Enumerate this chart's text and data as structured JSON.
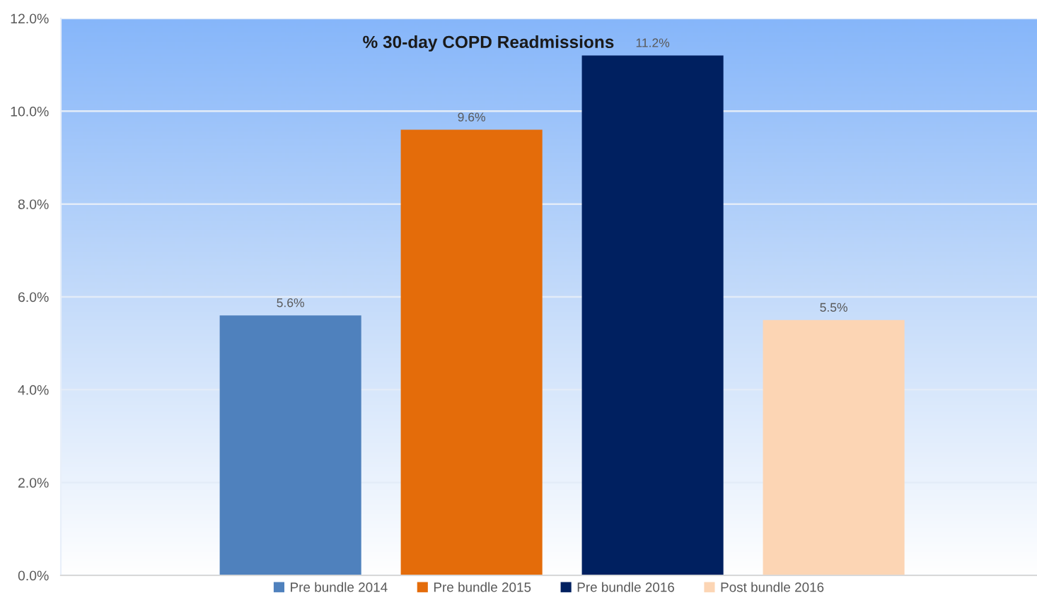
{
  "chart_data": {
    "type": "bar",
    "title": "% 30-day COPD Readmissions",
    "categories": [
      null
    ],
    "series": [
      {
        "name": "Pre bundle 2014",
        "color": "#4f81bd",
        "values": [
          5.6
        ],
        "value_labels": [
          "5.6%"
        ]
      },
      {
        "name": "Pre bundle 2015",
        "color": "#e46c0a",
        "values": [
          9.6
        ],
        "value_labels": [
          "9.6%"
        ]
      },
      {
        "name": "Pre bundle 2016",
        "color": "#002060",
        "values": [
          11.2
        ],
        "value_labels": [
          "11.2%"
        ]
      },
      {
        "name": "Post bundle 2016",
        "color": "#fcd5b4",
        "values": [
          5.5
        ],
        "value_labels": [
          "5.5%"
        ]
      }
    ],
    "ylim": [
      0,
      12
    ],
    "yticks": [
      {
        "value": 0,
        "label": "0.0%"
      },
      {
        "value": 2,
        "label": "2.0%"
      },
      {
        "value": 4,
        "label": "4.0%"
      },
      {
        "value": 6,
        "label": "6.0%"
      },
      {
        "value": 8,
        "label": "8.0%"
      },
      {
        "value": 10,
        "label": "10.0%"
      },
      {
        "value": 12,
        "label": "12.0%"
      }
    ],
    "grid": "y",
    "legend": "bottom",
    "tick_labels": "y"
  }
}
